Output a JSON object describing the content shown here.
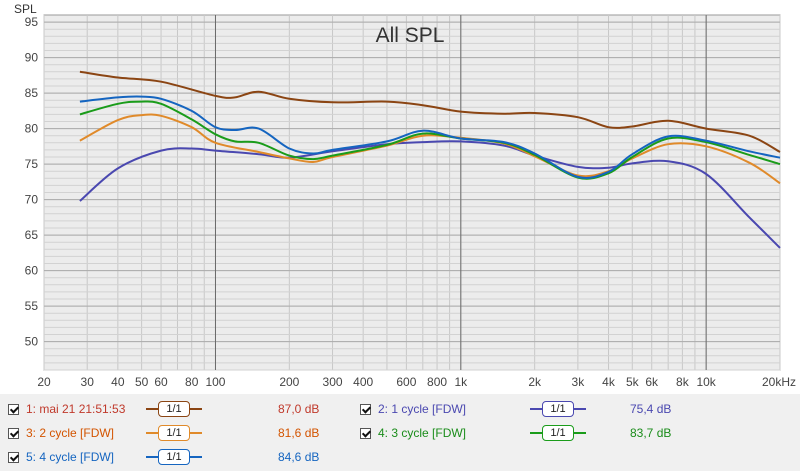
{
  "chart_data": {
    "type": "line",
    "title": "All SPL",
    "ylabel": "SPL",
    "xlabel": "",
    "x_scale": "log",
    "xlim": [
      20,
      20000
    ],
    "ylim": [
      46,
      96
    ],
    "y_ticks": [
      50,
      55,
      60,
      65,
      70,
      75,
      80,
      85,
      90,
      95
    ],
    "x_ticks": [
      {
        "value": 20,
        "label": "20"
      },
      {
        "value": 30,
        "label": "30"
      },
      {
        "value": 40,
        "label": "40"
      },
      {
        "value": 50,
        "label": "50"
      },
      {
        "value": 60,
        "label": "60"
      },
      {
        "value": 80,
        "label": "80"
      },
      {
        "value": 100,
        "label": "100"
      },
      {
        "value": 200,
        "label": "200"
      },
      {
        "value": 300,
        "label": "300"
      },
      {
        "value": 400,
        "label": "400"
      },
      {
        "value": 600,
        "label": "600"
      },
      {
        "value": 800,
        "label": "800"
      },
      {
        "value": 1000,
        "label": "1k"
      },
      {
        "value": 2000,
        "label": "2k"
      },
      {
        "value": 3000,
        "label": "3k"
      },
      {
        "value": 4000,
        "label": "4k"
      },
      {
        "value": 5000,
        "label": "5k"
      },
      {
        "value": 6000,
        "label": "6k"
      },
      {
        "value": 8000,
        "label": "8k"
      },
      {
        "value": 10000,
        "label": "10k"
      },
      {
        "value": 20000,
        "label": "20kHz"
      }
    ],
    "grid": true,
    "series": [
      {
        "name": "1: mai 21 21:51:53",
        "color": "#8b4513",
        "value_label": "87,0 dB",
        "x": [
          28,
          40,
          60,
          100,
          120,
          150,
          200,
          300,
          500,
          700,
          1000,
          1500,
          2000,
          3000,
          4000,
          5000,
          7000,
          10000,
          15000,
          20000
        ],
        "y": [
          88,
          87.2,
          86.6,
          84.6,
          84.4,
          85.2,
          84.2,
          83.7,
          83.8,
          83.3,
          82.4,
          82.1,
          82.2,
          81.6,
          80.2,
          80.3,
          81.1,
          80,
          79,
          76.7
        ]
      },
      {
        "name": "2: 1 cycle [FDW]",
        "color": "#4a48b0",
        "value_label": "75,4 dB",
        "x": [
          28,
          40,
          60,
          80,
          100,
          150,
          200,
          300,
          500,
          700,
          1000,
          1500,
          2000,
          3000,
          4000,
          5000,
          7000,
          10000,
          15000,
          20000
        ],
        "y": [
          69.8,
          74.4,
          76.9,
          77.2,
          76.9,
          76.4,
          75.9,
          76.8,
          77.8,
          78.1,
          78.2,
          77.6,
          76.2,
          74.6,
          74.5,
          75.1,
          75.4,
          73.6,
          67.5,
          63.2
        ]
      },
      {
        "name": "3: 2 cycle [FDW]",
        "color": "#e08a2a",
        "value_label": "81,6 dB",
        "x": [
          28,
          40,
          50,
          60,
          80,
          100,
          150,
          200,
          250,
          300,
          500,
          700,
          1000,
          1500,
          2000,
          3000,
          4000,
          5000,
          7000,
          10000,
          15000,
          20000
        ],
        "y": [
          78.3,
          81.2,
          81.9,
          81.8,
          80.2,
          78,
          76.7,
          75.8,
          75.3,
          76,
          77.6,
          79,
          78.7,
          77.9,
          76.1,
          73.4,
          74,
          75.8,
          77.8,
          77.5,
          75.2,
          72.3
        ]
      },
      {
        "name": "4: 3 cycle [FDW]",
        "color": "#1a9c1a",
        "value_label": "83,7 dB",
        "x": [
          28,
          40,
          50,
          60,
          80,
          100,
          120,
          150,
          200,
          250,
          300,
          500,
          700,
          1000,
          1500,
          2000,
          3000,
          4000,
          5000,
          7000,
          10000,
          15000,
          20000
        ],
        "y": [
          82,
          83.5,
          83.8,
          83.5,
          81.3,
          79.2,
          78.2,
          78,
          76.2,
          75.7,
          76.2,
          77.7,
          79.3,
          78.6,
          78,
          76.3,
          73.1,
          73.7,
          76,
          78.6,
          78.1,
          76.3,
          75
        ]
      },
      {
        "name": "5: 4 cycle [FDW]",
        "color": "#1565c0",
        "value_label": "84,6 dB",
        "x": [
          28,
          40,
          50,
          60,
          80,
          100,
          120,
          150,
          200,
          250,
          300,
          500,
          700,
          1000,
          1500,
          2000,
          3000,
          4000,
          5000,
          7000,
          10000,
          15000,
          20000
        ],
        "y": [
          83.8,
          84.4,
          84.5,
          84.2,
          82.5,
          80.2,
          79.8,
          80,
          77.2,
          76.5,
          77,
          78.2,
          79.7,
          78.6,
          78.1,
          76.5,
          73.2,
          73.9,
          76.4,
          78.9,
          78.3,
          76.8,
          75.9
        ]
      }
    ]
  },
  "legend": [
    {
      "name": "1: mai 21 21:51:53",
      "smooth": "1/1",
      "value": "87,0 dB",
      "color": "#8b4513",
      "text_color": "#c0392b"
    },
    {
      "name": "2: 1 cycle [FDW]",
      "smooth": "1/1",
      "value": "75,4 dB",
      "color": "#4a48b0",
      "text_color": "#4a48b0"
    },
    {
      "name": "3: 2 cycle [FDW]",
      "smooth": "1/1",
      "value": "81,6 dB",
      "color": "#e08a2a",
      "text_color": "#d35400"
    },
    {
      "name": "4: 3 cycle [FDW]",
      "smooth": "1/1",
      "value": "83,7 dB",
      "color": "#1a9c1a",
      "text_color": "#1a8c1a"
    },
    {
      "name": "5: 4 cycle [FDW]",
      "smooth": "1/1",
      "value": "84,6 dB",
      "color": "#1565c0",
      "text_color": "#1565c0"
    }
  ]
}
